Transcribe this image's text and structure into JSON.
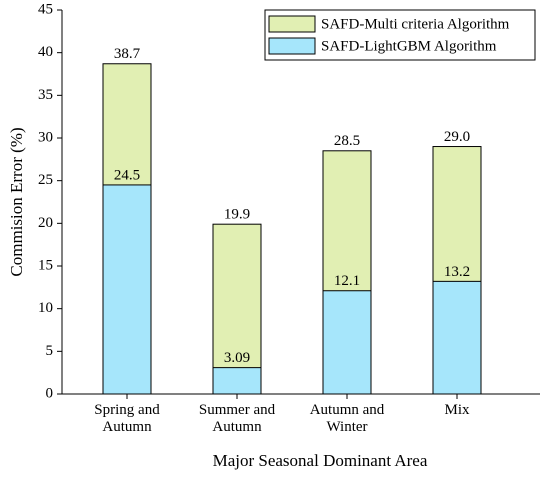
{
  "chart_data": {
    "type": "bar",
    "xlabel": "Major Seasonal Dominant Area",
    "ylabel": "Commision Error (%)",
    "categories": [
      "Spring and Autumn",
      "Summer and Autumn",
      "Autumn and Winter",
      "Mix"
    ],
    "series": [
      {
        "name": "SAFD-Multi criteria Algorithm",
        "color": "#e1efb3",
        "values": [
          38.7,
          19.9,
          28.5,
          29.0
        ],
        "value_labels": [
          "38.7",
          "19.9",
          "28.5",
          "29.0"
        ]
      },
      {
        "name": "SAFD-LightGBM Algorithm",
        "color": "#a6e6fb",
        "values": [
          24.5,
          3.09,
          12.1,
          13.2
        ]
      }
    ],
    "ylim": [
      0,
      45
    ],
    "yticks": [
      0,
      5,
      10,
      15,
      20,
      25,
      30,
      35,
      40,
      45
    ],
    "legend": "upper right",
    "grid": false
  }
}
